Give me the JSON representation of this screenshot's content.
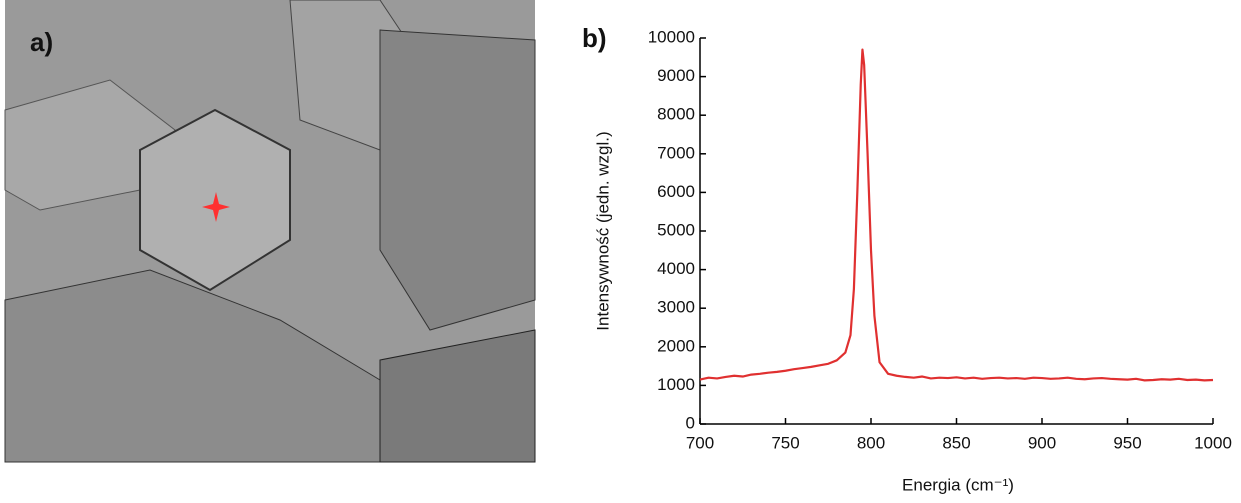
{
  "panels": {
    "a": "a)",
    "b": "b)"
  },
  "chart_data": {
    "type": "line",
    "xlabel": "Energia (cm⁻¹)",
    "ylabel": "Intensywność (jedn. wzgl.)",
    "xlim": [
      700,
      1000
    ],
    "xticks": [
      700,
      750,
      800,
      850,
      900,
      950,
      1000
    ],
    "ylim": [
      0,
      10000
    ],
    "yticks": [
      0,
      1000,
      2000,
      3000,
      4000,
      5000,
      6000,
      7000,
      8000,
      9000,
      10000
    ],
    "x": [
      700,
      705,
      710,
      715,
      720,
      725,
      730,
      735,
      740,
      745,
      750,
      755,
      760,
      765,
      770,
      775,
      780,
      785,
      788,
      790,
      792,
      794,
      795,
      796,
      798,
      800,
      802,
      805,
      810,
      815,
      820,
      825,
      830,
      835,
      840,
      845,
      850,
      855,
      860,
      865,
      870,
      875,
      880,
      885,
      890,
      895,
      900,
      905,
      910,
      915,
      920,
      925,
      930,
      935,
      940,
      945,
      950,
      955,
      960,
      965,
      970,
      975,
      980,
      985,
      990,
      995,
      1000
    ],
    "series": [
      {
        "color": "#e03030",
        "values": [
          1150,
          1200,
          1180,
          1220,
          1250,
          1230,
          1280,
          1300,
          1330,
          1350,
          1380,
          1420,
          1450,
          1480,
          1520,
          1560,
          1650,
          1850,
          2300,
          3500,
          6000,
          8800,
          9700,
          9300,
          7000,
          4500,
          2800,
          1600,
          1300,
          1250,
          1220,
          1200,
          1230,
          1180,
          1200,
          1190,
          1210,
          1180,
          1200,
          1170,
          1190,
          1200,
          1180,
          1190,
          1170,
          1200,
          1190,
          1170,
          1180,
          1200,
          1170,
          1160,
          1180,
          1190,
          1170,
          1160,
          1150,
          1170,
          1130,
          1140,
          1160,
          1150,
          1170,
          1140,
          1150,
          1130,
          1140
        ]
      }
    ]
  }
}
